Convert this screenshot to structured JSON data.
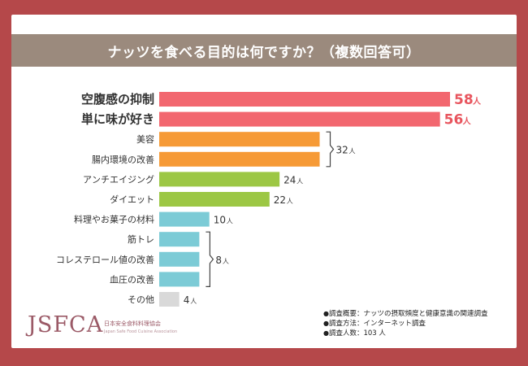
{
  "title": "ナッツを食べる目的は何ですか？（複数回答可）",
  "unit": "人",
  "chart_data": {
    "type": "bar",
    "orientation": "horizontal",
    "categories": [
      "空腹感の抑制",
      "単に味が好き",
      "美容",
      "腸内環境の改善",
      "アンチエイジング",
      "ダイエット",
      "料理やお菓子の材料",
      "筋トレ",
      "コレステロール値の改善",
      "血圧の改善",
      "その他"
    ],
    "values": [
      58,
      56,
      32,
      32,
      24,
      22,
      10,
      8,
      8,
      8,
      4
    ],
    "value_labels": [
      "58",
      "56",
      "32",
      "32",
      "24",
      "22",
      "10",
      "8",
      "8",
      "8",
      "4"
    ],
    "bar_colors": [
      "#f2676f",
      "#f2676f",
      "#f69a36",
      "#f69a36",
      "#9cc744",
      "#9cc744",
      "#7ccbd6",
      "#7ccbd6",
      "#7ccbd6",
      "#7ccbd6",
      "#d9d9d9"
    ],
    "emphasized_categories": [
      "空腹感の抑制",
      "単に味が好き"
    ],
    "groups": [
      {
        "members": [
          "美容",
          "腸内環境の改善"
        ],
        "label": "32"
      },
      {
        "members": [
          "筋トレ",
          "コレステロール値の改善",
          "血圧の改善"
        ],
        "label": "8"
      }
    ],
    "xlim": [
      0,
      58
    ],
    "grid": false,
    "title": "ナッツを食べる目的は何ですか？（複数回答可）"
  },
  "logo": {
    "mark": "JSFCA",
    "org_name": "日本安全食料料理協会",
    "org_name_en": "Japan Safe Food Cuisine Association"
  },
  "notes": [
    "調査概要：ナッツの摂取頻度と健康意識の関連調査",
    "調査方法：インターネット調査",
    "調査人数：103 人"
  ]
}
